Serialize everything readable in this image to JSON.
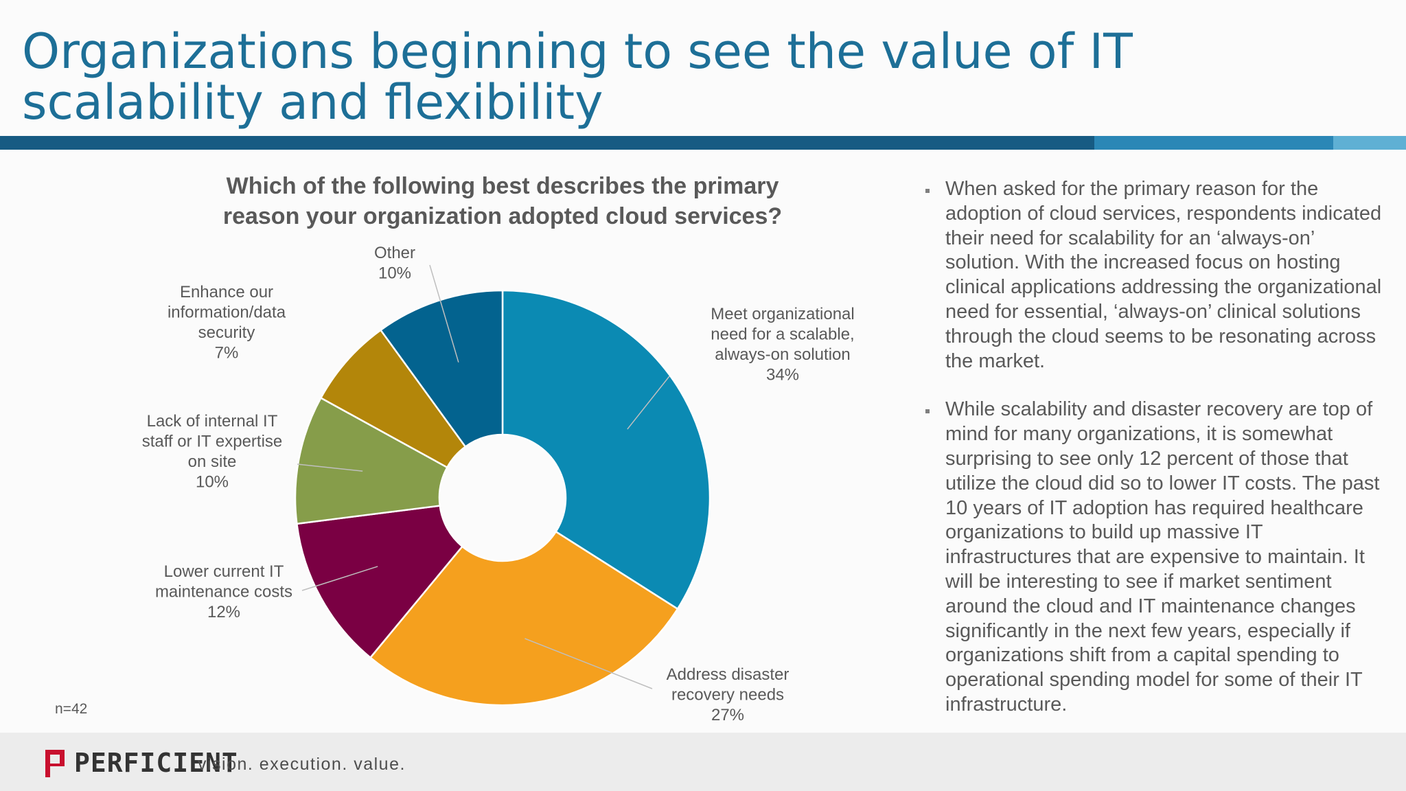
{
  "slide": {
    "title": "Organizations beginning to see the value of IT scalability and flexibility",
    "colors": {
      "title": "#1d6f97",
      "bar": [
        "#175b83",
        "#2b87b6",
        "#5fb0d4"
      ]
    }
  },
  "chart_data": {
    "type": "pie",
    "style": "donut",
    "title": [
      "Which of the following best describes the primary",
      "reason your organization adopted cloud services?"
    ],
    "note": "n=42",
    "series": [
      {
        "label": [
          "Meet organizational",
          "need for a scalable,",
          "always-on solution"
        ],
        "value": 34,
        "value_label": "34%",
        "color": "#0b8ab3"
      },
      {
        "label": [
          "Address disaster",
          "recovery needs"
        ],
        "value": 27,
        "value_label": "27%",
        "color": "#f5a01e"
      },
      {
        "label": [
          "Lower current IT",
          "maintenance costs"
        ],
        "value": 12,
        "value_label": "12%",
        "color": "#7a0043"
      },
      {
        "label": [
          "Lack of internal IT",
          "staff or IT expertise",
          "on site"
        ],
        "value": 10,
        "value_label": "10%",
        "color": "#869d4a"
      },
      {
        "label": [
          "Enhance our",
          "information/data",
          "security"
        ],
        "value": 7,
        "value_label": "7%",
        "color": "#b3860a"
      },
      {
        "label": [
          "Other"
        ],
        "value": 10,
        "value_label": "10%",
        "color": "#03638f"
      }
    ]
  },
  "bullets": [
    {
      "text": "When asked for the primary reason for the adoption of cloud services, respondents indicated their need for scalability for an ‘always-on’ solution. With the increased focus on hosting clinical applications addressing the organizational need for essential, ‘always-on’ clinical solutions through the cloud seems to be resonating across the market."
    },
    {
      "text": "While scalability and disaster recovery are top of mind for many organizations, it is somewhat surprising to see only 12 percent of those that utilize the cloud did so to lower IT costs. The past 10 years of IT adoption has required healthcare organizations to build up massive IT infrastructures that are expensive to maintain. It will be interesting to see if market sentiment around the cloud and IT maintenance changes significantly in the next few years, especially if organizations shift from a capital spending to operational spending model for some of their IT infrastructure."
    }
  ],
  "footer": {
    "logo_text": "PERFICIENT",
    "logo_color": "#c8102e",
    "tagline": "vision.  execution.  value."
  }
}
